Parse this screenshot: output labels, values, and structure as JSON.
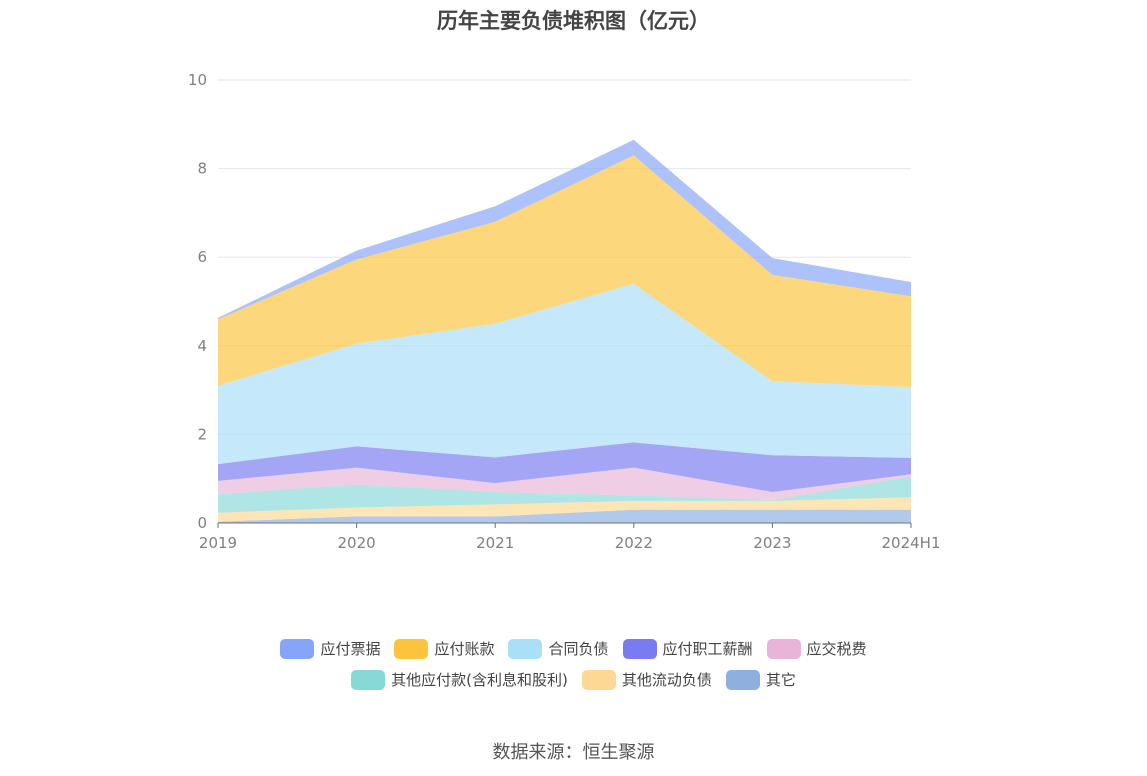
{
  "chart_data": {
    "type": "area",
    "stacked": true,
    "title": "历年主要负债堆积图（亿元）",
    "categories": [
      "2019",
      "2020",
      "2021",
      "2022",
      "2023",
      "2024H1"
    ],
    "ylim": [
      0,
      10
    ],
    "yticks": [
      "0",
      "2",
      "4",
      "6",
      "8",
      "10"
    ],
    "grid": true,
    "legend_position": "bottom",
    "series": [
      {
        "name": "其它",
        "color": "#8fb0de",
        "values": [
          0.03,
          0.15,
          0.15,
          0.3,
          0.3,
          0.3
        ]
      },
      {
        "name": "其他流动负债",
        "color": "#fdd894",
        "values": [
          0.2,
          0.2,
          0.27,
          0.2,
          0.2,
          0.28
        ]
      },
      {
        "name": "其他应付款(含利息和股利)",
        "color": "#89d8d8",
        "values": [
          0.42,
          0.52,
          0.28,
          0.12,
          0.02,
          0.47
        ]
      },
      {
        "name": "应交税费",
        "color": "#e8b5d9",
        "values": [
          0.3,
          0.38,
          0.2,
          0.63,
          0.18,
          0.05
        ]
      },
      {
        "name": "应付职工薪酬",
        "color": "#7a7af1",
        "values": [
          0.38,
          0.48,
          0.58,
          0.57,
          0.83,
          0.37
        ]
      },
      {
        "name": "合同负债",
        "color": "#a9dff7",
        "values": [
          1.77,
          2.32,
          3.02,
          3.58,
          1.67,
          1.6
        ]
      },
      {
        "name": "应付账款",
        "color": "#fcc43c",
        "values": [
          1.5,
          1.9,
          2.3,
          2.9,
          2.4,
          2.05
        ]
      },
      {
        "name": "应付票据",
        "color": "#86a5f8",
        "values": [
          0.03,
          0.2,
          0.35,
          0.35,
          0.38,
          0.32
        ]
      }
    ]
  },
  "legend_rows": [
    [
      {
        "label": "应付票据",
        "color": "#86a5f8"
      },
      {
        "label": "应付账款",
        "color": "#fcc43c"
      },
      {
        "label": "合同负债",
        "color": "#a9dff7"
      },
      {
        "label": "应付职工薪酬",
        "color": "#7a7af1"
      },
      {
        "label": "应交税费",
        "color": "#e8b5d9"
      }
    ],
    [
      {
        "label": "其他应付款(含利息和股利)",
        "color": "#89d8d8"
      },
      {
        "label": "其他流动负债",
        "color": "#fdd894"
      },
      {
        "label": "其它",
        "color": "#8fb0de"
      }
    ]
  ],
  "source": "数据来源：恒生聚源"
}
